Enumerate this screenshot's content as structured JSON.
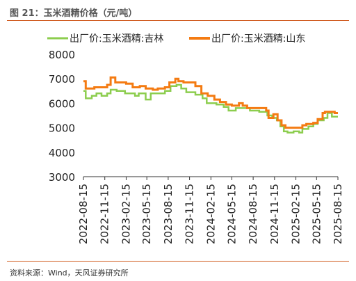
{
  "title": "图 21：玉米酒精价格（元/吨）",
  "source": "资料来源：Wind，天风证券研究所",
  "colors": {
    "jilin": "#8ccd4e",
    "shandong": "#f47b12",
    "rule": "#d05a1e",
    "axis": "#333333"
  },
  "chart_data": {
    "type": "line",
    "ylim": [
      3000,
      8000
    ],
    "yticks": [
      "3000",
      "4000",
      "5000",
      "6000",
      "7000",
      "8000"
    ],
    "xticks": [
      "2022-08-15",
      "2022-11-15",
      "2023-02-15",
      "2023-05-15",
      "2023-08-15",
      "2023-11-15",
      "2024-02-15",
      "2024-05-15",
      "2024-08-15",
      "2024-11-15",
      "2025-02-15",
      "2025-05-15",
      "2025-08-15"
    ],
    "legend_position": "top",
    "series": [
      {
        "name": "出厂价:玉米酒精:吉林",
        "color": "#8ccd4e",
        "points": [
          [
            "2022-08-15",
            6500
          ],
          [
            "2022-08-25",
            6200
          ],
          [
            "2022-09-20",
            6300
          ],
          [
            "2022-10-10",
            6400
          ],
          [
            "2022-11-01",
            6300
          ],
          [
            "2022-11-25",
            6400
          ],
          [
            "2022-12-10",
            6550
          ],
          [
            "2023-01-05",
            6500
          ],
          [
            "2023-02-10",
            6400
          ],
          [
            "2023-03-25",
            6300
          ],
          [
            "2023-04-10",
            6400
          ],
          [
            "2023-05-10",
            6150
          ],
          [
            "2023-06-01",
            6400
          ],
          [
            "2023-07-01",
            6400
          ],
          [
            "2023-08-01",
            6500
          ],
          [
            "2023-08-25",
            6700
          ],
          [
            "2023-09-20",
            6750
          ],
          [
            "2023-10-10",
            6600
          ],
          [
            "2023-11-01",
            6450
          ],
          [
            "2023-12-10",
            6350
          ],
          [
            "2024-01-10",
            6200
          ],
          [
            "2024-01-28",
            6000
          ],
          [
            "2024-03-10",
            5950
          ],
          [
            "2024-04-10",
            5850
          ],
          [
            "2024-05-01",
            5700
          ],
          [
            "2024-06-01",
            5800
          ],
          [
            "2024-07-15",
            5800
          ],
          [
            "2024-08-01",
            5700
          ],
          [
            "2024-09-10",
            5650
          ],
          [
            "2024-10-15",
            5500
          ],
          [
            "2024-11-05",
            5400
          ],
          [
            "2024-11-25",
            5300
          ],
          [
            "2024-12-10",
            5050
          ],
          [
            "2024-12-25",
            4850
          ],
          [
            "2025-01-10",
            4800
          ],
          [
            "2025-02-05",
            4850
          ],
          [
            "2025-03-01",
            4800
          ],
          [
            "2025-03-15",
            4950
          ],
          [
            "2025-04-10",
            5050
          ],
          [
            "2025-05-01",
            5150
          ],
          [
            "2025-05-20",
            5300
          ],
          [
            "2025-06-15",
            5400
          ],
          [
            "2025-07-01",
            5600
          ],
          [
            "2025-07-20",
            5450
          ],
          [
            "2025-08-15",
            5450
          ]
        ]
      },
      {
        "name": "出厂价:玉米酒精:山东",
        "color": "#f47b12",
        "points": [
          [
            "2022-08-15",
            6900
          ],
          [
            "2022-08-25",
            6600
          ],
          [
            "2022-10-01",
            6650
          ],
          [
            "2022-11-01",
            6650
          ],
          [
            "2022-11-25",
            6750
          ],
          [
            "2022-12-10",
            7050
          ],
          [
            "2022-12-30",
            6850
          ],
          [
            "2023-02-15",
            6800
          ],
          [
            "2023-03-15",
            6650
          ],
          [
            "2023-04-15",
            6700
          ],
          [
            "2023-05-10",
            6600
          ],
          [
            "2023-06-10",
            6550
          ],
          [
            "2023-07-01",
            6600
          ],
          [
            "2023-08-01",
            6650
          ],
          [
            "2023-08-20",
            6850
          ],
          [
            "2023-09-15",
            7000
          ],
          [
            "2023-09-28",
            6900
          ],
          [
            "2023-10-20",
            6850
          ],
          [
            "2023-11-20",
            6850
          ],
          [
            "2023-12-10",
            6700
          ],
          [
            "2024-01-05",
            6400
          ],
          [
            "2024-02-01",
            6300
          ],
          [
            "2024-03-01",
            6150
          ],
          [
            "2024-03-25",
            6050
          ],
          [
            "2024-04-20",
            5950
          ],
          [
            "2024-05-15",
            5900
          ],
          [
            "2024-06-15",
            6000
          ],
          [
            "2024-07-01",
            5900
          ],
          [
            "2024-07-20",
            5800
          ],
          [
            "2024-08-20",
            5800
          ],
          [
            "2024-09-20",
            5800
          ],
          [
            "2024-10-10",
            5700
          ],
          [
            "2024-10-20",
            5400
          ],
          [
            "2024-11-10",
            5550
          ],
          [
            "2024-11-28",
            5300
          ],
          [
            "2024-12-15",
            5100
          ],
          [
            "2025-01-01",
            5000
          ],
          [
            "2025-02-01",
            5000
          ],
          [
            "2025-03-01",
            5000
          ],
          [
            "2025-03-15",
            5100
          ],
          [
            "2025-04-01",
            5150
          ],
          [
            "2025-05-01",
            5200
          ],
          [
            "2025-05-20",
            5350
          ],
          [
            "2025-06-10",
            5600
          ],
          [
            "2025-06-20",
            5650
          ],
          [
            "2025-07-15",
            5650
          ],
          [
            "2025-08-01",
            5600
          ],
          [
            "2025-08-15",
            5600
          ]
        ]
      }
    ]
  }
}
